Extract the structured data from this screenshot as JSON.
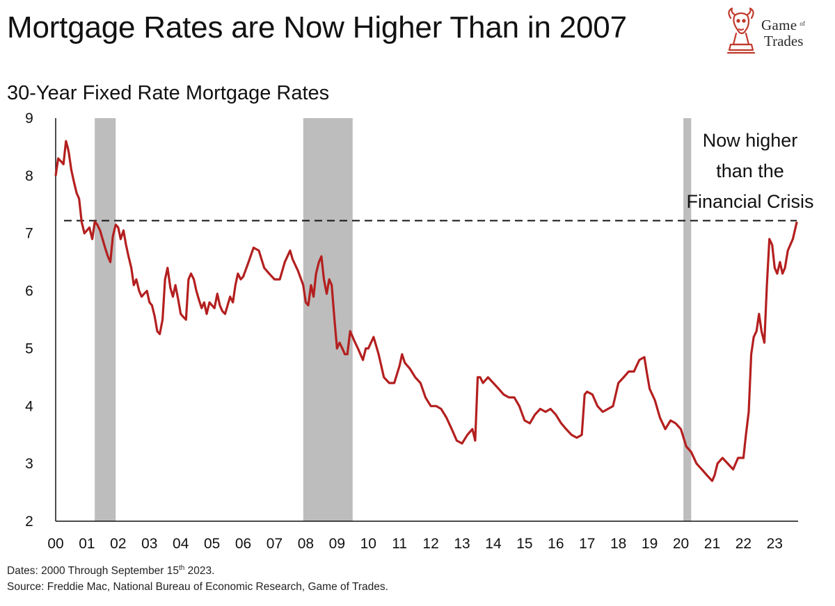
{
  "header": {
    "title": "Mortgage Rates are Now Higher Than in 2007",
    "logo_text": {
      "line1_game": "Game",
      "line1_of": "of",
      "line2": "Trades"
    }
  },
  "footer": {
    "dates_prefix": "Dates: 2000 Through September 15",
    "dates_sup": "th",
    "dates_suffix": " 2023.",
    "source": "Source: Freddie Mac, National Bureau of Economic Research, Game of Trades."
  },
  "colors": {
    "line": "#b41f1f",
    "recession": "#bdbdbd",
    "reference": "#111111",
    "logo": "#c0392b"
  },
  "chart_data": {
    "type": "line",
    "title": "30-Year Fixed Rate Mortgage Rates",
    "xlabel": "",
    "ylabel": "",
    "ylim": [
      2,
      9
    ],
    "xlim": [
      2000,
      2023.75
    ],
    "y_ticks": [
      2,
      3,
      4,
      5,
      6,
      7,
      8,
      9
    ],
    "x_ticks": [
      {
        "label": "00",
        "value": 2000
      },
      {
        "label": "01",
        "value": 2001
      },
      {
        "label": "02",
        "value": 2002
      },
      {
        "label": "03",
        "value": 2003
      },
      {
        "label": "04",
        "value": 2004
      },
      {
        "label": "05",
        "value": 2005
      },
      {
        "label": "06",
        "value": 2006
      },
      {
        "label": "07",
        "value": 2007
      },
      {
        "label": "08",
        "value": 2008
      },
      {
        "label": "09",
        "value": 2009
      },
      {
        "label": "10",
        "value": 2010
      },
      {
        "label": "11",
        "value": 2011
      },
      {
        "label": "12",
        "value": 2012
      },
      {
        "label": "13",
        "value": 2013
      },
      {
        "label": "14",
        "value": 2014
      },
      {
        "label": "15",
        "value": 2015
      },
      {
        "label": "16",
        "value": 2016
      },
      {
        "label": "17",
        "value": 2017
      },
      {
        "label": "18",
        "value": 2018
      },
      {
        "label": "19",
        "value": 2019
      },
      {
        "label": "20",
        "value": 2020
      },
      {
        "label": "21",
        "value": 2021
      },
      {
        "label": "22",
        "value": 2022
      },
      {
        "label": "23",
        "value": 2023
      }
    ],
    "recessions": [
      {
        "start": 2001.25,
        "end": 2001.92
      },
      {
        "start": 2007.92,
        "end": 2009.5
      },
      {
        "start": 2020.08,
        "end": 2020.33
      }
    ],
    "reference_line": {
      "value": 7.22,
      "style": "dashed"
    },
    "annotation": {
      "lines": [
        "Now higher",
        "than the",
        "Financial Crisis"
      ]
    },
    "series": [
      {
        "name": "30-Year Fixed Rate Mortgage",
        "x": [
          2000.0,
          2000.08,
          2000.17,
          2000.25,
          2000.33,
          2000.38,
          2000.42,
          2000.5,
          2000.58,
          2000.67,
          2000.75,
          2000.83,
          2000.92,
          2001.0,
          2001.08,
          2001.17,
          2001.25,
          2001.33,
          2001.42,
          2001.5,
          2001.58,
          2001.67,
          2001.75,
          2001.83,
          2001.92,
          2002.0,
          2002.08,
          2002.17,
          2002.25,
          2002.33,
          2002.42,
          2002.5,
          2002.58,
          2002.67,
          2002.75,
          2002.83,
          2002.92,
          2003.0,
          2003.08,
          2003.17,
          2003.25,
          2003.33,
          2003.42,
          2003.5,
          2003.58,
          2003.67,
          2003.75,
          2003.83,
          2003.92,
          2004.0,
          2004.08,
          2004.17,
          2004.25,
          2004.33,
          2004.42,
          2004.5,
          2004.58,
          2004.67,
          2004.75,
          2004.83,
          2004.92,
          2005.0,
          2005.08,
          2005.17,
          2005.25,
          2005.33,
          2005.42,
          2005.5,
          2005.58,
          2005.67,
          2005.75,
          2005.83,
          2005.92,
          2006.0,
          2006.17,
          2006.33,
          2006.5,
          2006.67,
          2006.83,
          2007.0,
          2007.17,
          2007.33,
          2007.5,
          2007.58,
          2007.75,
          2007.92,
          2008.0,
          2008.08,
          2008.17,
          2008.25,
          2008.33,
          2008.42,
          2008.5,
          2008.58,
          2008.67,
          2008.75,
          2008.83,
          2008.92,
          2009.0,
          2009.08,
          2009.17,
          2009.25,
          2009.33,
          2009.42,
          2009.5,
          2009.58,
          2009.67,
          2009.75,
          2009.83,
          2009.92,
          2010.0,
          2010.17,
          2010.33,
          2010.5,
          2010.67,
          2010.83,
          2011.0,
          2011.08,
          2011.17,
          2011.33,
          2011.5,
          2011.67,
          2011.83,
          2012.0,
          2012.17,
          2012.33,
          2012.5,
          2012.67,
          2012.83,
          2013.0,
          2013.17,
          2013.33,
          2013.42,
          2013.5,
          2013.58,
          2013.67,
          2013.83,
          2014.0,
          2014.17,
          2014.33,
          2014.5,
          2014.67,
          2014.83,
          2015.0,
          2015.17,
          2015.33,
          2015.5,
          2015.67,
          2015.83,
          2016.0,
          2016.17,
          2016.33,
          2016.5,
          2016.67,
          2016.83,
          2016.92,
          2017.0,
          2017.17,
          2017.33,
          2017.5,
          2017.67,
          2017.83,
          2018.0,
          2018.17,
          2018.33,
          2018.5,
          2018.67,
          2018.83,
          2018.92,
          2019.0,
          2019.17,
          2019.33,
          2019.5,
          2019.67,
          2019.83,
          2020.0,
          2020.17,
          2020.33,
          2020.5,
          2020.67,
          2020.83,
          2021.0,
          2021.08,
          2021.17,
          2021.33,
          2021.5,
          2021.67,
          2021.83,
          2022.0,
          2022.08,
          2022.17,
          2022.25,
          2022.33,
          2022.42,
          2022.5,
          2022.58,
          2022.67,
          2022.75,
          2022.83,
          2022.92,
          2023.0,
          2023.08,
          2023.17,
          2023.25,
          2023.33,
          2023.42,
          2023.5,
          2023.58,
          2023.71
        ],
        "values": [
          8.0,
          8.3,
          8.25,
          8.2,
          8.6,
          8.5,
          8.4,
          8.1,
          7.9,
          7.7,
          7.6,
          7.2,
          7.0,
          7.05,
          7.1,
          6.9,
          7.2,
          7.15,
          7.05,
          6.9,
          6.75,
          6.6,
          6.5,
          6.95,
          7.15,
          7.1,
          6.9,
          7.05,
          6.8,
          6.6,
          6.4,
          6.1,
          6.2,
          6.0,
          5.9,
          5.95,
          6.0,
          5.8,
          5.75,
          5.55,
          5.3,
          5.25,
          5.5,
          6.2,
          6.4,
          6.05,
          5.9,
          6.1,
          5.85,
          5.6,
          5.55,
          5.5,
          6.2,
          6.3,
          6.2,
          6.0,
          5.85,
          5.7,
          5.8,
          5.6,
          5.8,
          5.75,
          5.7,
          5.95,
          5.75,
          5.65,
          5.6,
          5.75,
          5.9,
          5.8,
          6.1,
          6.3,
          6.2,
          6.25,
          6.5,
          6.75,
          6.7,
          6.4,
          6.3,
          6.2,
          6.2,
          6.5,
          6.7,
          6.55,
          6.35,
          6.1,
          5.8,
          5.75,
          6.1,
          5.9,
          6.3,
          6.5,
          6.6,
          6.2,
          5.95,
          6.2,
          6.1,
          5.5,
          5.0,
          5.1,
          5.0,
          4.9,
          4.9,
          5.3,
          5.2,
          5.1,
          5.0,
          4.9,
          4.8,
          5.0,
          5.0,
          5.2,
          4.9,
          4.5,
          4.4,
          4.4,
          4.7,
          4.9,
          4.75,
          4.65,
          4.5,
          4.4,
          4.15,
          4.0,
          4.0,
          3.95,
          3.8,
          3.6,
          3.4,
          3.35,
          3.5,
          3.6,
          3.4,
          4.5,
          4.5,
          4.4,
          4.5,
          4.4,
          4.3,
          4.2,
          4.15,
          4.15,
          4.0,
          3.75,
          3.7,
          3.85,
          3.95,
          3.9,
          3.95,
          3.85,
          3.7,
          3.6,
          3.5,
          3.45,
          3.5,
          4.2,
          4.25,
          4.2,
          4.0,
          3.9,
          3.95,
          4.0,
          4.4,
          4.5,
          4.6,
          4.6,
          4.8,
          4.85,
          4.55,
          4.3,
          4.1,
          3.8,
          3.6,
          3.75,
          3.7,
          3.6,
          3.3,
          3.2,
          3.0,
          2.9,
          2.8,
          2.7,
          2.8,
          3.0,
          3.1,
          3.0,
          2.9,
          3.1,
          3.1,
          3.5,
          3.9,
          4.9,
          5.2,
          5.3,
          5.6,
          5.3,
          5.1,
          6.1,
          6.9,
          6.8,
          6.4,
          6.3,
          6.5,
          6.3,
          6.4,
          6.7,
          6.8,
          6.9,
          7.2
        ]
      }
    ]
  }
}
